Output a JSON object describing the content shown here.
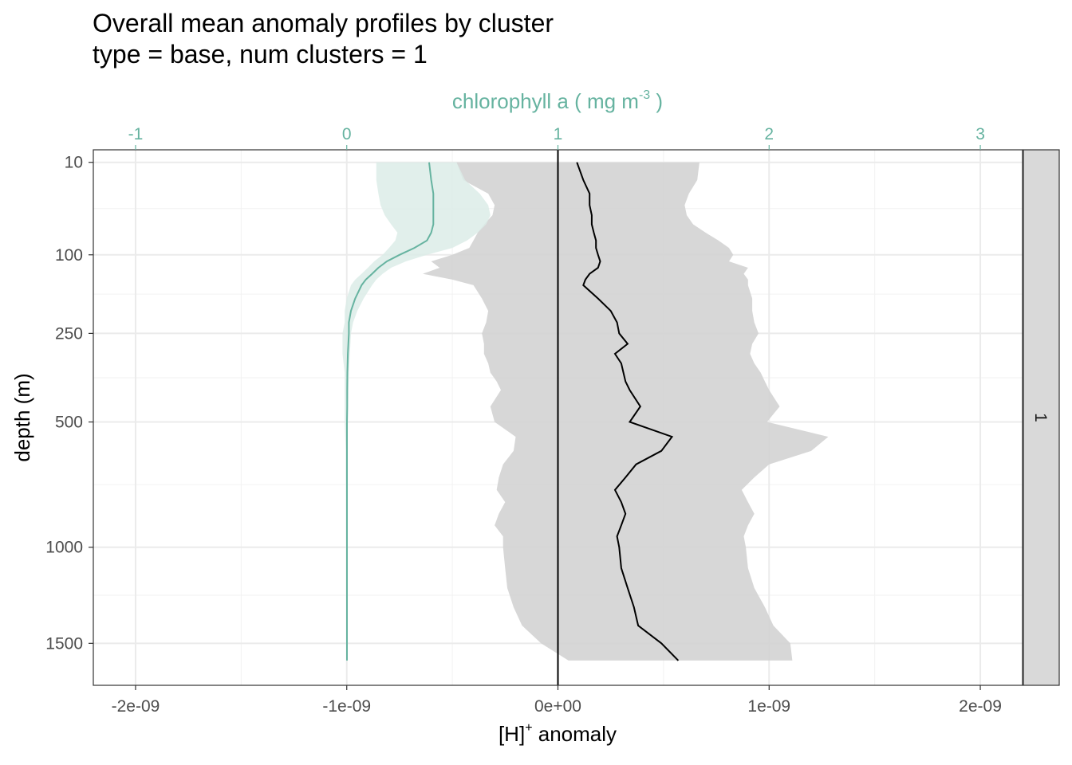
{
  "chart_data": {
    "type": "line",
    "title": "Overall mean anomaly profiles by cluster",
    "subtitle": "type = base, num clusters = 1",
    "xlabel_base": "[H]",
    "xlabel_sup": "+",
    "xlabel_rest": " anomaly",
    "x2label_base": "chlorophyll a ( mg m",
    "x2label_sup": "-3",
    "x2label_rest": " )",
    "ylabel": "depth (m)",
    "facet_label": "1",
    "xlim": [
      -2.2e-09,
      2.2e-09
    ],
    "x2lim": [
      -1.2,
      3.2
    ],
    "ylim_sqrt": [
      5,
      1750
    ],
    "y_scale": "reverse-sqrt",
    "x_ticks": [
      -2e-09,
      -1e-09,
      0,
      1e-09,
      2e-09
    ],
    "x_tick_labels": [
      "-2e-09",
      "-1e-09",
      "0e+00",
      "1e-09",
      "2e-09"
    ],
    "x2_ticks": [
      -1,
      0,
      1,
      2,
      3
    ],
    "x2_tick_labels": [
      "-1",
      "0",
      "1",
      "2",
      "3"
    ],
    "y_ticks": [
      10,
      100,
      250,
      500,
      1000,
      1500
    ],
    "y_tick_labels": [
      "10",
      "100",
      "250",
      "500",
      "1000",
      "1500"
    ],
    "grid": true,
    "colors": {
      "chl_line": "#66b3a0",
      "chl_ribbon": "#dcece8",
      "h_line": "#000000",
      "h_ribbon": "#d3d3d3",
      "strip_bg": "#d9d9d9",
      "top_axis": "#66b3a0"
    },
    "series": [
      {
        "id": "h_anomaly",
        "axis": "bottom",
        "depth": [
          10,
          20,
          30,
          40,
          50,
          60,
          70,
          80,
          90,
          100,
          110,
          120,
          130,
          140,
          150,
          175,
          200,
          225,
          250,
          275,
          300,
          325,
          350,
          375,
          400,
          450,
          500,
          550,
          600,
          650,
          700,
          750,
          800,
          850,
          900,
          950,
          1000,
          1100,
          1200,
          1300,
          1400,
          1500,
          1600
        ],
        "mean": [
          9e-11,
          1.2e-10,
          1.5e-10,
          1.5e-10,
          1.6e-10,
          1.6e-10,
          1.7e-10,
          1.8e-10,
          1.8e-10,
          1.9e-10,
          2e-10,
          1.9e-10,
          1.5e-10,
          1.3e-10,
          1.2e-10,
          1.9e-10,
          2.5e-10,
          2.8e-10,
          2.9e-10,
          3.3e-10,
          2.7e-10,
          3e-10,
          3.1e-10,
          3.2e-10,
          3.4e-10,
          3.9e-10,
          3.4e-10,
          5.4e-10,
          4.9e-10,
          3.7e-10,
          3.2e-10,
          2.7e-10,
          3e-10,
          3.2e-10,
          3e-10,
          2.8e-10,
          2.9e-10,
          3e-10,
          3.3e-10,
          3.6e-10,
          3.8e-10,
          4.9e-10,
          5.7e-10
        ],
        "lower": [
          -4.8e-10,
          -4.5e-10,
          -3.3e-10,
          -3e-10,
          -3.1e-10,
          -3.5e-10,
          -3.8e-10,
          -4e-10,
          -4.2e-10,
          -5e-10,
          -6e-10,
          -5.6e-10,
          -6.4e-10,
          -5e-10,
          -4e-10,
          -3.6e-10,
          -3.3e-10,
          -3.4e-10,
          -3.6e-10,
          -3.5e-10,
          -3.5e-10,
          -3.3e-10,
          -3.2e-10,
          -2.9e-10,
          -2.7e-10,
          -3.2e-10,
          -3e-10,
          -2e-10,
          -2.1e-10,
          -2.6e-10,
          -2.8e-10,
          -2.9e-10,
          -2.5e-10,
          -2.8e-10,
          -3e-10,
          -2.6e-10,
          -2.6e-10,
          -2.5e-10,
          -2.4e-10,
          -2.1e-10,
          -1.7e-10,
          -8e-11,
          5e-11
        ],
        "upper": [
          6.7e-10,
          6.6e-10,
          6.2e-10,
          6e-10,
          6.1e-10,
          6.4e-10,
          7e-10,
          7.6e-10,
          8.1e-10,
          8.3e-10,
          8.1e-10,
          9e-10,
          8.8e-10,
          9e-10,
          9e-10,
          9.2e-10,
          9.2e-10,
          9.3e-10,
          9.5e-10,
          9.2e-10,
          9.1e-10,
          9.3e-10,
          9.6e-10,
          9.8e-10,
          1e-09,
          1.05e-09,
          9.9e-10,
          1.28e-09,
          1.2e-09,
          1e-09,
          9.3e-10,
          8.7e-10,
          9e-10,
          9.3e-10,
          9e-10,
          8.8e-10,
          8.9e-10,
          9e-10,
          9.3e-10,
          9.8e-10,
          1.02e-09,
          1.1e-09,
          1.11e-09
        ]
      },
      {
        "id": "chlorophyll_a",
        "axis": "top",
        "depth": [
          10,
          20,
          30,
          40,
          50,
          60,
          70,
          80,
          90,
          100,
          110,
          120,
          130,
          140,
          150,
          175,
          200,
          225,
          250,
          300,
          350,
          400,
          450,
          500,
          600,
          700,
          800,
          1000,
          1200,
          1400,
          1600
        ],
        "mean": [
          0.39,
          0.4,
          0.41,
          0.41,
          0.41,
          0.41,
          0.4,
          0.38,
          0.32,
          0.25,
          0.19,
          0.15,
          0.12,
          0.09,
          0.07,
          0.04,
          0.02,
          0.01,
          0.01,
          0.005,
          0.003,
          0.002,
          0.002,
          0.001,
          0.001,
          0.001,
          0.001,
          0.001,
          0.001,
          0.001,
          0.001
        ],
        "lower": [
          0.14,
          0.14,
          0.15,
          0.16,
          0.18,
          0.21,
          0.24,
          0.23,
          0.2,
          0.17,
          0.13,
          0.1,
          0.07,
          0.04,
          0.02,
          0.0,
          -0.01,
          -0.01,
          -0.02,
          -0.02,
          -0.01,
          -0.01,
          -0.01,
          -0.01,
          -0.005,
          -0.005,
          -0.004,
          -0.003,
          -0.003,
          -0.002,
          -0.002
        ],
        "upper": [
          0.52,
          0.56,
          0.63,
          0.67,
          0.68,
          0.66,
          0.62,
          0.57,
          0.5,
          0.38,
          0.28,
          0.21,
          0.17,
          0.14,
          0.12,
          0.08,
          0.05,
          0.03,
          0.02,
          0.015,
          0.01,
          0.008,
          0.006,
          0.005,
          0.004,
          0.003,
          0.003,
          0.003,
          0.002,
          0.002,
          0.002
        ]
      }
    ]
  }
}
